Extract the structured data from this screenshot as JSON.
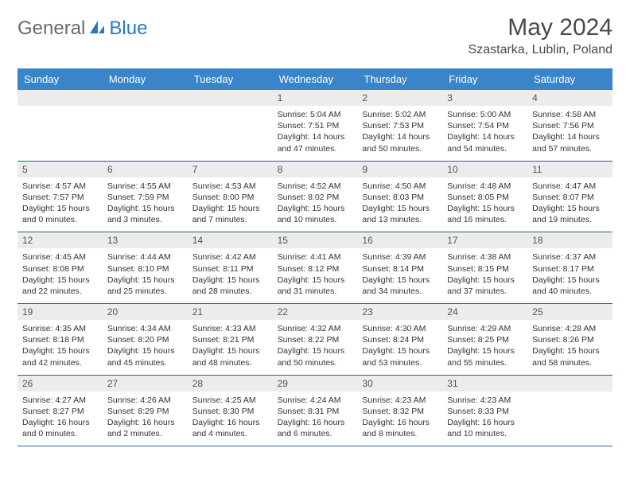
{
  "logo": {
    "text1": "General",
    "text2": "Blue"
  },
  "title": "May 2024",
  "location": "Szastarka, Lublin, Poland",
  "day_header_bg": "#3a84c9",
  "day_header_fg": "#ffffff",
  "daynum_bg": "#ececec",
  "divider_color": "#2f5f8f",
  "body_font_size": 10.5,
  "day_names": [
    "Sunday",
    "Monday",
    "Tuesday",
    "Wednesday",
    "Thursday",
    "Friday",
    "Saturday"
  ],
  "weeks": [
    [
      null,
      null,
      null,
      {
        "n": "1",
        "sunrise": "5:04 AM",
        "sunset": "7:51 PM",
        "daylight": "14 hours and 47 minutes."
      },
      {
        "n": "2",
        "sunrise": "5:02 AM",
        "sunset": "7:53 PM",
        "daylight": "14 hours and 50 minutes."
      },
      {
        "n": "3",
        "sunrise": "5:00 AM",
        "sunset": "7:54 PM",
        "daylight": "14 hours and 54 minutes."
      },
      {
        "n": "4",
        "sunrise": "4:58 AM",
        "sunset": "7:56 PM",
        "daylight": "14 hours and 57 minutes."
      }
    ],
    [
      {
        "n": "5",
        "sunrise": "4:57 AM",
        "sunset": "7:57 PM",
        "daylight": "15 hours and 0 minutes."
      },
      {
        "n": "6",
        "sunrise": "4:55 AM",
        "sunset": "7:59 PM",
        "daylight": "15 hours and 3 minutes."
      },
      {
        "n": "7",
        "sunrise": "4:53 AM",
        "sunset": "8:00 PM",
        "daylight": "15 hours and 7 minutes."
      },
      {
        "n": "8",
        "sunrise": "4:52 AM",
        "sunset": "8:02 PM",
        "daylight": "15 hours and 10 minutes."
      },
      {
        "n": "9",
        "sunrise": "4:50 AM",
        "sunset": "8:03 PM",
        "daylight": "15 hours and 13 minutes."
      },
      {
        "n": "10",
        "sunrise": "4:48 AM",
        "sunset": "8:05 PM",
        "daylight": "15 hours and 16 minutes."
      },
      {
        "n": "11",
        "sunrise": "4:47 AM",
        "sunset": "8:07 PM",
        "daylight": "15 hours and 19 minutes."
      }
    ],
    [
      {
        "n": "12",
        "sunrise": "4:45 AM",
        "sunset": "8:08 PM",
        "daylight": "15 hours and 22 minutes."
      },
      {
        "n": "13",
        "sunrise": "4:44 AM",
        "sunset": "8:10 PM",
        "daylight": "15 hours and 25 minutes."
      },
      {
        "n": "14",
        "sunrise": "4:42 AM",
        "sunset": "8:11 PM",
        "daylight": "15 hours and 28 minutes."
      },
      {
        "n": "15",
        "sunrise": "4:41 AM",
        "sunset": "8:12 PM",
        "daylight": "15 hours and 31 minutes."
      },
      {
        "n": "16",
        "sunrise": "4:39 AM",
        "sunset": "8:14 PM",
        "daylight": "15 hours and 34 minutes."
      },
      {
        "n": "17",
        "sunrise": "4:38 AM",
        "sunset": "8:15 PM",
        "daylight": "15 hours and 37 minutes."
      },
      {
        "n": "18",
        "sunrise": "4:37 AM",
        "sunset": "8:17 PM",
        "daylight": "15 hours and 40 minutes."
      }
    ],
    [
      {
        "n": "19",
        "sunrise": "4:35 AM",
        "sunset": "8:18 PM",
        "daylight": "15 hours and 42 minutes."
      },
      {
        "n": "20",
        "sunrise": "4:34 AM",
        "sunset": "8:20 PM",
        "daylight": "15 hours and 45 minutes."
      },
      {
        "n": "21",
        "sunrise": "4:33 AM",
        "sunset": "8:21 PM",
        "daylight": "15 hours and 48 minutes."
      },
      {
        "n": "22",
        "sunrise": "4:32 AM",
        "sunset": "8:22 PM",
        "daylight": "15 hours and 50 minutes."
      },
      {
        "n": "23",
        "sunrise": "4:30 AM",
        "sunset": "8:24 PM",
        "daylight": "15 hours and 53 minutes."
      },
      {
        "n": "24",
        "sunrise": "4:29 AM",
        "sunset": "8:25 PM",
        "daylight": "15 hours and 55 minutes."
      },
      {
        "n": "25",
        "sunrise": "4:28 AM",
        "sunset": "8:26 PM",
        "daylight": "15 hours and 58 minutes."
      }
    ],
    [
      {
        "n": "26",
        "sunrise": "4:27 AM",
        "sunset": "8:27 PM",
        "daylight": "16 hours and 0 minutes."
      },
      {
        "n": "27",
        "sunrise": "4:26 AM",
        "sunset": "8:29 PM",
        "daylight": "16 hours and 2 minutes."
      },
      {
        "n": "28",
        "sunrise": "4:25 AM",
        "sunset": "8:30 PM",
        "daylight": "16 hours and 4 minutes."
      },
      {
        "n": "29",
        "sunrise": "4:24 AM",
        "sunset": "8:31 PM",
        "daylight": "16 hours and 6 minutes."
      },
      {
        "n": "30",
        "sunrise": "4:23 AM",
        "sunset": "8:32 PM",
        "daylight": "16 hours and 8 minutes."
      },
      {
        "n": "31",
        "sunrise": "4:23 AM",
        "sunset": "8:33 PM",
        "daylight": "16 hours and 10 minutes."
      },
      null
    ]
  ],
  "labels": {
    "sunrise": "Sunrise: ",
    "sunset": "Sunset: ",
    "daylight": "Daylight: "
  }
}
